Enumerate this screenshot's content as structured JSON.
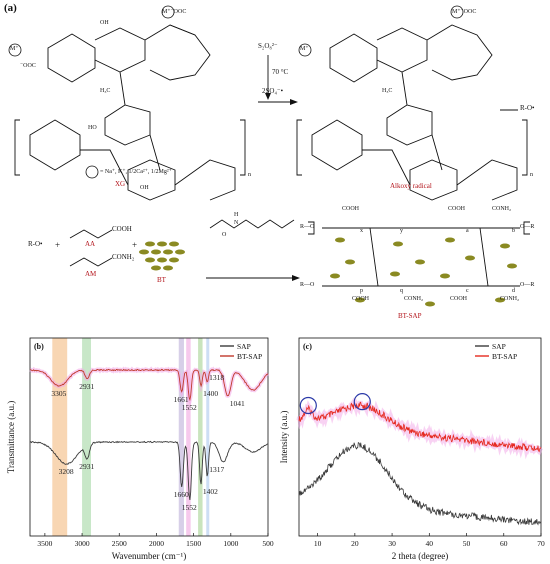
{
  "panel_a": {
    "label": "(a)",
    "initiator": "S₂O₈²⁻",
    "temperature": "70 °C",
    "sulfate_radical": "2SO₄⁻•",
    "cation_def": "= Na⁺, K⁺, 1/2Ca²⁺, 1/2Mg²⁺",
    "xg_label": "XG",
    "alkoxy_label": "Alkoxy radical",
    "ro_radical": "R-O•",
    "ro_left": "R-O•",
    "plus": "+",
    "aa_label": "AA",
    "am_label": "AM",
    "bt_label": "BT",
    "btsap_label": "BT-SAP",
    "cooh": "COOH",
    "conh2": "CONH₂",
    "metal_coo": "M⁺⁻OOC",
    "coo_metal": "⁻OOC",
    "m_plus": "M⁺",
    "ch3": "H₃C",
    "oh": "OH",
    "ho": "HO",
    "o": "O",
    "n_sub": "n",
    "h": "H",
    "n": "N",
    "r_o": "O—R",
    "r_o_left": "R—O",
    "subs": [
      "x",
      "y",
      "a",
      "b",
      "p",
      "q",
      "c",
      "d"
    ]
  },
  "chart_b": {
    "type": "line",
    "label": "(b)",
    "xlabel": "Wavenumber (cm⁻¹)",
    "ylabel": "Transmittance (a.u.)",
    "xlim": [
      3700,
      500
    ],
    "x_ticks": [
      3500,
      3000,
      2500,
      2000,
      1500,
      1000,
      500
    ],
    "series": [
      {
        "name": "SAP",
        "color": "#3a3a3a",
        "peaks": [
          {
            "x": 3208,
            "label": "3208"
          },
          {
            "x": 2931,
            "label": "2931"
          },
          {
            "x": 1660,
            "label": "1660"
          },
          {
            "x": 1552,
            "label": "1552"
          },
          {
            "x": 1402,
            "label": "1402"
          },
          {
            "x": 1317,
            "label": "1317"
          }
        ]
      },
      {
        "name": "BT-SAP",
        "color": "#c0392b",
        "peaks": [
          {
            "x": 3305,
            "label": "3305"
          },
          {
            "x": 2931,
            "label": "2931"
          },
          {
            "x": 1661,
            "label": "1661"
          },
          {
            "x": 1552,
            "label": "1552"
          },
          {
            "x": 1400,
            "label": "1400"
          },
          {
            "x": 1318,
            "label": "1318"
          },
          {
            "x": 1041,
            "label": "1041"
          }
        ]
      }
    ],
    "bands": [
      {
        "from": 3400,
        "to": 3200,
        "color": "#f6c89a"
      },
      {
        "from": 3000,
        "to": 2880,
        "color": "#b5dfb5"
      },
      {
        "from": 1700,
        "to": 1630,
        "color": "#c9bfe0"
      },
      {
        "from": 1600,
        "to": 1540,
        "color": "#f3b7e6"
      },
      {
        "from": 1440,
        "to": 1380,
        "color": "#b7dba7"
      },
      {
        "from": 1330,
        "to": 1290,
        "color": "#bcd3f0"
      }
    ]
  },
  "chart_c": {
    "type": "line",
    "label": "(c)",
    "xlabel": "2 theta (degree)",
    "ylabel": "Intensity (a.u.)",
    "xlim": [
      5,
      70
    ],
    "x_ticks": [
      10,
      20,
      30,
      40,
      50,
      60,
      70
    ],
    "series": [
      {
        "name": "SAP",
        "color": "#3a3a3a",
        "peak_x": 21
      },
      {
        "name": "BT-SAP",
        "color": "#e5291f",
        "peak_x": 22
      }
    ],
    "circled_peaks_x": [
      7.5,
      22
    ]
  }
}
